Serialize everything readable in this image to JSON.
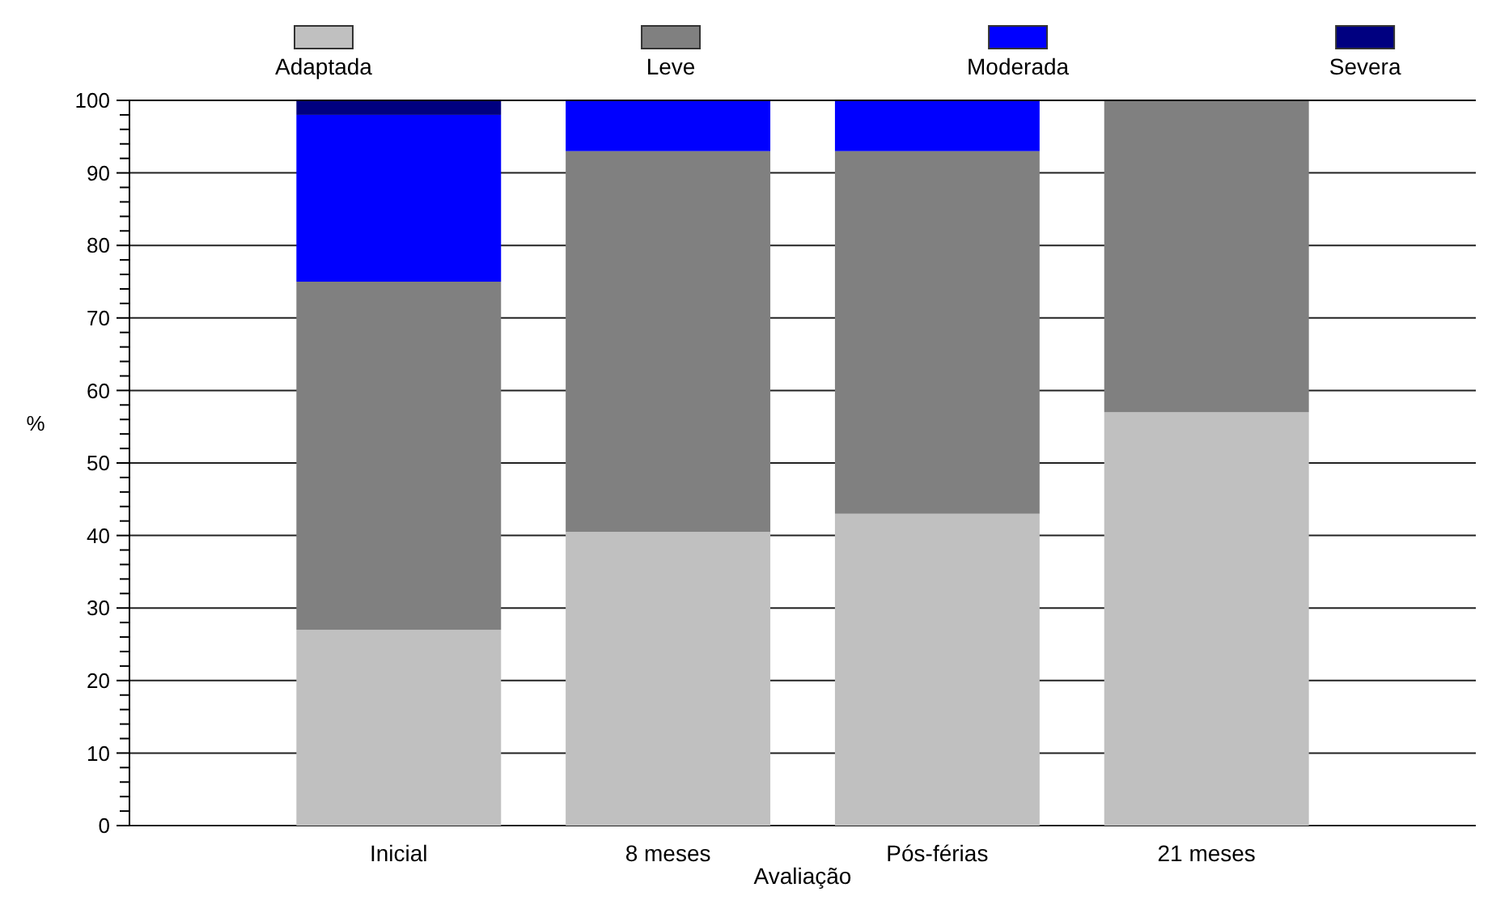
{
  "chart_data": {
    "type": "bar",
    "stacked": true,
    "xlabel": "Avaliação",
    "ylabel": "%",
    "categories": [
      "Inicial",
      "8 meses",
      "Pós-férias",
      "21 meses"
    ],
    "series": [
      {
        "name": "Adaptada",
        "color": "#c0c0c0",
        "values": [
          27,
          40.5,
          43,
          57
        ]
      },
      {
        "name": "Leve",
        "color": "#808080",
        "values": [
          48,
          52.5,
          50,
          43
        ]
      },
      {
        "name": "Moderada",
        "color": "#0000ff",
        "values": [
          23,
          7,
          7,
          0
        ]
      },
      {
        "name": "Severa",
        "color": "#000080",
        "values": [
          2,
          0,
          0,
          0
        ]
      }
    ],
    "ylim": [
      0,
      100
    ],
    "yticks": [
      0,
      {
        "value": 2,
        "label": null
      },
      {
        "value": 4,
        "label": null
      },
      {
        "value": 6,
        "label": null
      },
      {
        "value": 8,
        "label": null
      },
      10,
      {
        "value": 12,
        "label": null
      },
      {
        "value": 14,
        "label": null
      },
      {
        "value": 16,
        "label": null
      },
      {
        "value": 18,
        "label": null
      },
      20,
      {
        "value": 22,
        "label": null
      },
      {
        "value": 24,
        "label": null
      },
      {
        "value": 26,
        "label": null
      },
      {
        "value": 28,
        "label": null
      },
      30,
      {
        "value": 32,
        "label": null
      },
      {
        "value": 34,
        "label": null
      },
      {
        "value": 36,
        "label": null
      },
      {
        "value": 38,
        "label": null
      },
      40,
      {
        "value": 42,
        "label": null
      },
      {
        "value": 44,
        "label": null
      },
      {
        "value": 46,
        "label": null
      },
      {
        "value": 48,
        "label": null
      },
      50,
      {
        "value": 52,
        "label": null
      },
      {
        "value": 54,
        "label": null
      },
      {
        "value": 56,
        "label": null
      },
      {
        "value": 58,
        "label": null
      },
      60,
      {
        "value": 62,
        "label": null
      },
      {
        "value": 64,
        "label": null
      },
      {
        "value": 66,
        "label": null
      },
      {
        "value": 68,
        "label": null
      },
      70,
      {
        "value": 72,
        "label": null
      },
      {
        "value": 74,
        "label": null
      },
      {
        "value": 76,
        "label": null
      },
      {
        "value": 78,
        "label": null
      },
      80,
      {
        "value": 82,
        "label": null
      },
      {
        "value": 84,
        "label": null
      },
      {
        "value": 86,
        "label": null
      },
      {
        "value": 88,
        "label": null
      },
      90,
      {
        "value": 92,
        "label": null
      },
      {
        "value": 94,
        "label": null
      },
      {
        "value": 96,
        "label": null
      },
      {
        "value": 98,
        "label": null
      },
      100
    ],
    "grid": "y",
    "legend": "top"
  }
}
